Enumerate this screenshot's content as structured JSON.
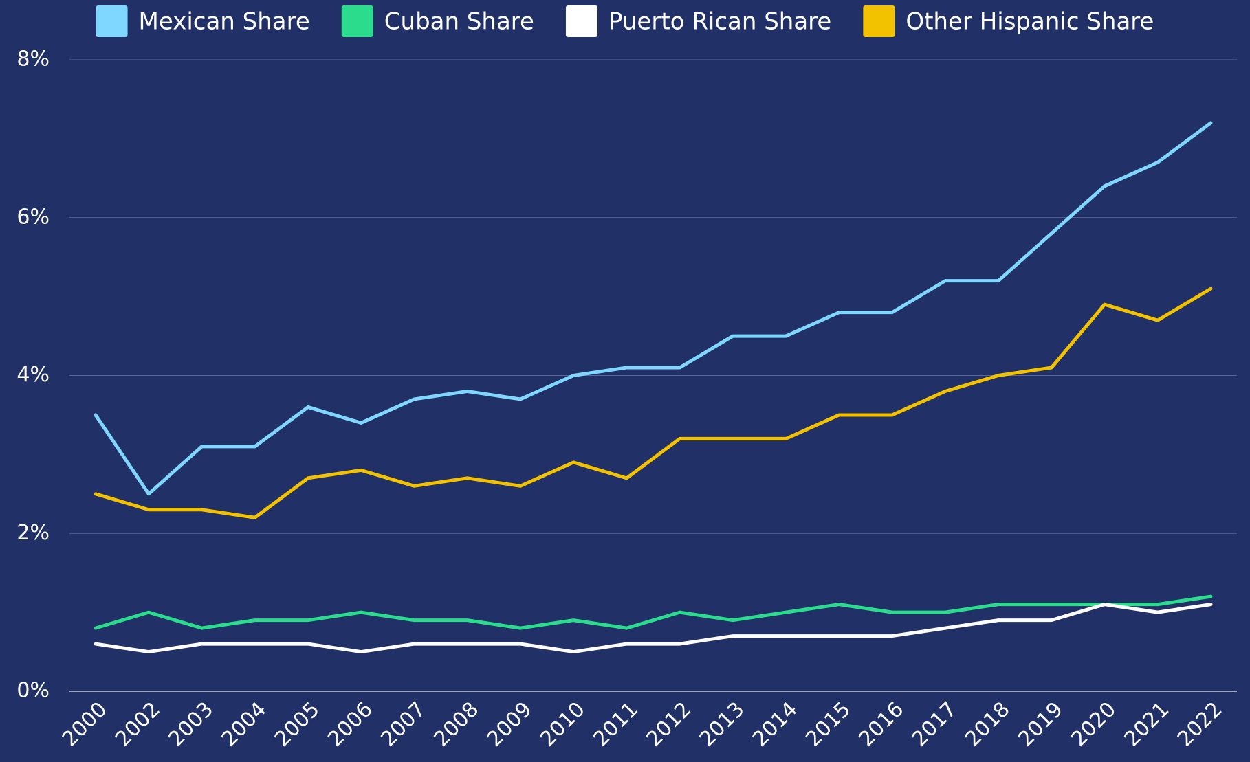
{
  "chart_data": {
    "type": "line",
    "categories": [
      "2000",
      "2002",
      "2003",
      "2004",
      "2005",
      "2006",
      "2007",
      "2008",
      "2009",
      "2010",
      "2011",
      "2012",
      "2013",
      "2014",
      "2015",
      "2016",
      "2017",
      "2018",
      "2019",
      "2020",
      "2021",
      "2022"
    ],
    "series": [
      {
        "name": "Mexican Share",
        "color": "#7fd6ff",
        "values": [
          3.5,
          2.5,
          3.1,
          3.1,
          3.6,
          3.4,
          3.7,
          3.8,
          3.7,
          4.0,
          4.1,
          4.1,
          4.5,
          4.5,
          4.8,
          4.8,
          5.2,
          5.2,
          5.8,
          6.4,
          6.7,
          7.2
        ]
      },
      {
        "name": "Cuban Share",
        "color": "#2bdc8c",
        "values": [
          0.8,
          1.0,
          0.8,
          0.9,
          0.9,
          1.0,
          0.9,
          0.9,
          0.8,
          0.9,
          0.8,
          1.0,
          0.9,
          1.0,
          1.1,
          1.0,
          1.0,
          1.1,
          1.1,
          1.1,
          1.1,
          1.2
        ]
      },
      {
        "name": "Puerto Rican Share",
        "color": "#ffffff",
        "values": [
          0.6,
          0.5,
          0.6,
          0.6,
          0.6,
          0.5,
          0.6,
          0.6,
          0.6,
          0.5,
          0.6,
          0.6,
          0.7,
          0.7,
          0.7,
          0.7,
          0.8,
          0.9,
          0.9,
          1.1,
          1.0,
          1.1
        ]
      },
      {
        "name": "Other Hispanic Share",
        "color": "#f2c200",
        "values": [
          2.5,
          2.3,
          2.3,
          2.2,
          2.7,
          2.8,
          2.6,
          2.7,
          2.6,
          2.9,
          2.7,
          3.2,
          3.2,
          3.2,
          3.5,
          3.5,
          3.8,
          4.0,
          4.1,
          4.9,
          4.7,
          5.1
        ]
      }
    ],
    "ylim": [
      0,
      8
    ],
    "yticks": [
      {
        "value": 0,
        "label": "0%"
      },
      {
        "value": 2,
        "label": "2%"
      },
      {
        "value": 4,
        "label": "4%"
      },
      {
        "value": 6,
        "label": "6%"
      },
      {
        "value": 8,
        "label": "8%"
      }
    ],
    "grid": true,
    "legend": "top"
  }
}
